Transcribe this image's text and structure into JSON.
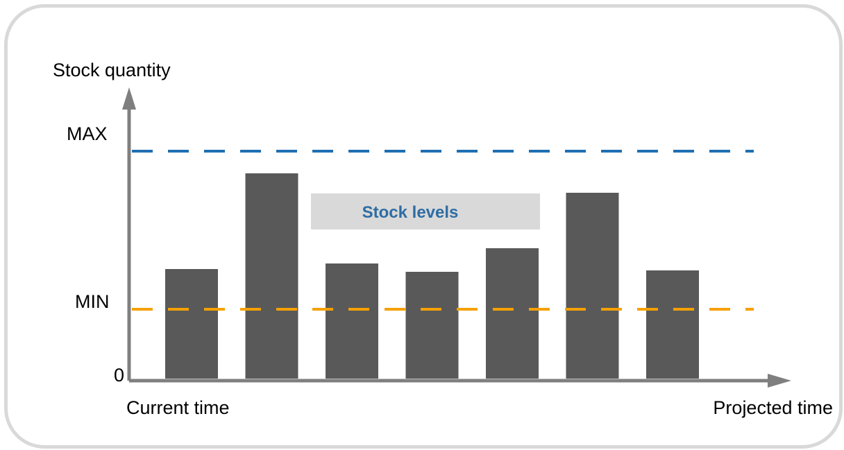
{
  "chart_data": {
    "type": "bar",
    "title": "",
    "ylabel": "Stock quantity",
    "xlabel_start": "Current time",
    "xlabel_end": "Projected time",
    "y_ticks": {
      "zero": "0",
      "min": "MIN",
      "max": "MAX"
    },
    "ylim": [
      0,
      100
    ],
    "reference_lines": [
      {
        "label": "MAX",
        "value": 82,
        "color": "#1f6fb2",
        "style": "dashed"
      },
      {
        "label": "MIN",
        "value": 25,
        "color": "#f5a000",
        "style": "dashed"
      }
    ],
    "values": [
      39.5,
      74,
      41.5,
      38.5,
      47,
      67,
      39
    ],
    "bar_color": "#595959",
    "legend": {
      "label": "Stock levels",
      "text_color": "#2e6da4",
      "background": "#d9d9d9"
    },
    "axis_color": "#7f7f7f",
    "grid": false
  }
}
